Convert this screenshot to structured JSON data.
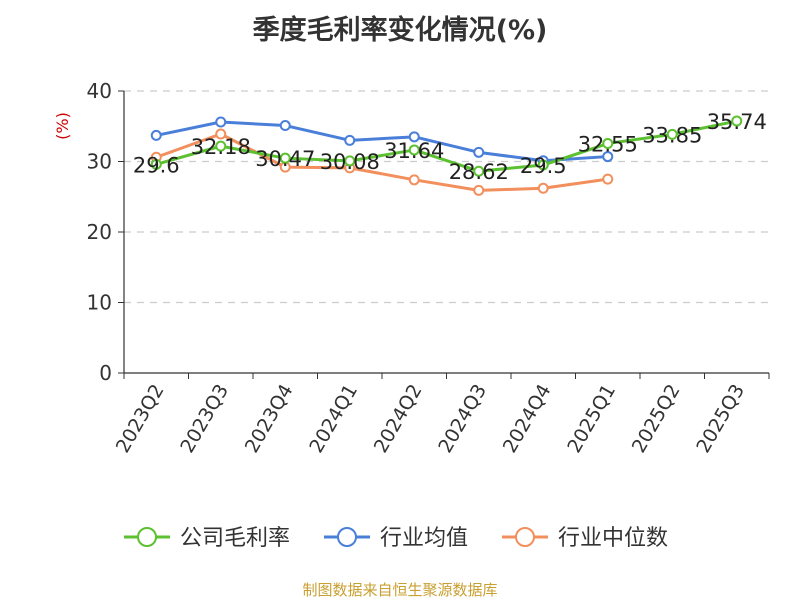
{
  "chart_data": {
    "type": "line",
    "title": "季度毛利率变化情况(%)",
    "ylabel": "(%)",
    "xlabel": "",
    "ylim": [
      0,
      40
    ],
    "yticks": [
      0,
      10,
      20,
      30,
      40
    ],
    "grid": true,
    "legend_position": "bottom",
    "categories": [
      "2023Q2",
      "2023Q3",
      "2023Q4",
      "2024Q1",
      "2024Q2",
      "2024Q3",
      "2024Q4",
      "2025Q1",
      "2025Q2",
      "2025Q3"
    ],
    "series": [
      {
        "name": "公司毛利率",
        "color": "#5cc130",
        "values": [
          29.6,
          32.18,
          30.47,
          30.08,
          31.64,
          28.62,
          29.5,
          32.55,
          33.85,
          35.74
        ],
        "labels": [
          "29.6",
          "32.18",
          "30.47",
          "30.08",
          "31.64",
          "28.62",
          "29.5",
          "32.55",
          "33.85",
          "35.74"
        ]
      },
      {
        "name": "行业均值",
        "color": "#4a7fd9",
        "values": [
          33.7,
          35.6,
          35.1,
          33.0,
          33.5,
          31.3,
          30.1,
          30.7,
          null,
          null
        ]
      },
      {
        "name": "行业中位数",
        "color": "#f28f5c",
        "values": [
          30.6,
          33.9,
          29.2,
          29.1,
          27.4,
          25.9,
          26.2,
          27.5,
          null,
          null
        ]
      }
    ]
  },
  "colors": {
    "unit": "#cc0000",
    "source": "#c8a032"
  },
  "source_note": "制图数据来自恒生聚源数据库"
}
